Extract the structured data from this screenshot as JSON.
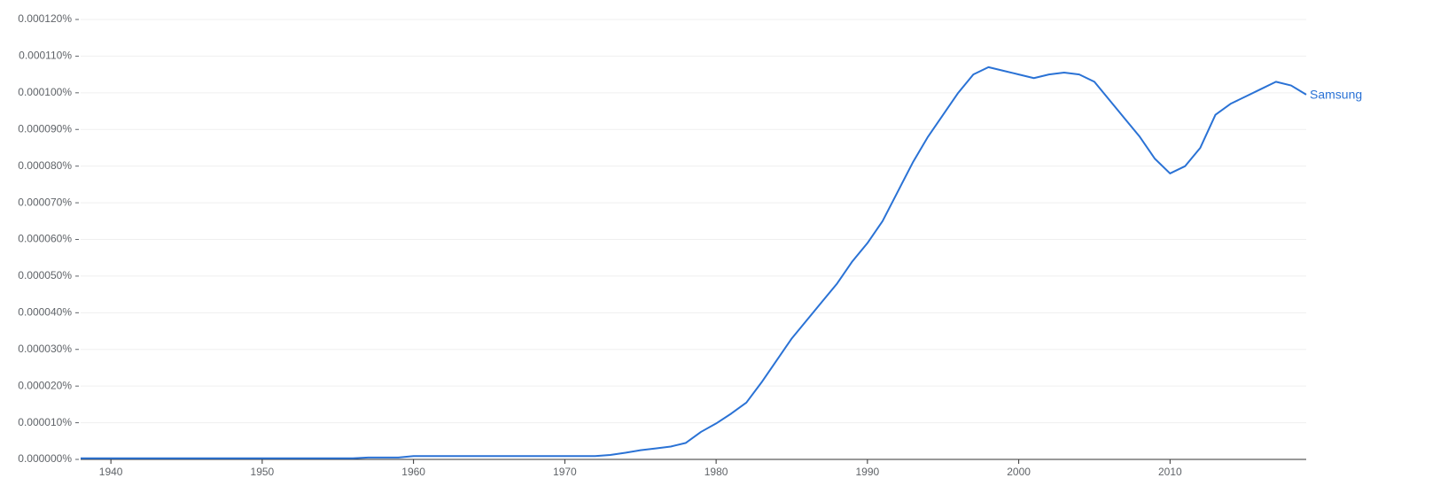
{
  "chart_data": {
    "type": "line",
    "x": [
      1938,
      1939,
      1940,
      1941,
      1942,
      1943,
      1944,
      1945,
      1946,
      1947,
      1948,
      1949,
      1950,
      1951,
      1952,
      1953,
      1954,
      1955,
      1956,
      1957,
      1958,
      1959,
      1960,
      1961,
      1962,
      1963,
      1964,
      1965,
      1966,
      1967,
      1968,
      1969,
      1970,
      1971,
      1972,
      1973,
      1974,
      1975,
      1976,
      1977,
      1978,
      1979,
      1980,
      1981,
      1982,
      1983,
      1984,
      1985,
      1986,
      1987,
      1988,
      1989,
      1990,
      1991,
      1992,
      1993,
      1994,
      1995,
      1996,
      1997,
      1998,
      1999,
      2000,
      2001,
      2002,
      2003,
      2004,
      2005,
      2006,
      2007,
      2008,
      2009,
      2010,
      2011,
      2012,
      2013,
      2014,
      2015,
      2016,
      2017,
      2018,
      2019
    ],
    "series": [
      {
        "name": "Samsung",
        "color": "#2a72d5",
        "values": [
          3e-07,
          3e-07,
          3e-07,
          3e-07,
          3e-07,
          3e-07,
          3e-07,
          3e-07,
          3e-07,
          3e-07,
          3e-07,
          3e-07,
          3e-07,
          3e-07,
          3e-07,
          3e-07,
          3e-07,
          3e-07,
          3e-07,
          5e-07,
          5e-07,
          5e-07,
          9e-07,
          9e-07,
          9e-07,
          9e-07,
          9e-07,
          9e-07,
          9e-07,
          9e-07,
          9e-07,
          9e-07,
          9e-07,
          9e-07,
          9e-07,
          1.2e-06,
          1.8e-06,
          2.5e-06,
          3e-06,
          3.5e-06,
          4.5e-06,
          7.5e-06,
          9.8e-06,
          1.25e-05,
          1.55e-05,
          2.1e-05,
          2.7e-05,
          3.3e-05,
          3.8e-05,
          4.3e-05,
          4.8e-05,
          5.4e-05,
          5.9e-05,
          6.5e-05,
          7.3e-05,
          8.1e-05,
          8.8e-05,
          9.4e-05,
          0.0001,
          0.000105,
          0.000107,
          0.000106,
          0.000105,
          0.000104,
          0.000105,
          0.0001055,
          0.000105,
          0.000103,
          9.8e-05,
          9.3e-05,
          8.8e-05,
          8.2e-05,
          7.8e-05,
          8e-05,
          8.5e-05,
          9.4e-05,
          9.7e-05,
          9.9e-05,
          0.000101,
          0.000103,
          0.000102,
          9.95e-05
        ]
      }
    ],
    "xlim": [
      1938,
      2019
    ],
    "xticks": [
      1940,
      1950,
      1960,
      1970,
      1980,
      1990,
      2000,
      2010
    ],
    "ylim": [
      0,
      0.00012
    ],
    "yticks": [
      {
        "value": 0,
        "label": "0.000000%"
      },
      {
        "value": 1e-05,
        "label": "0.000010%"
      },
      {
        "value": 2e-05,
        "label": "0.000020%"
      },
      {
        "value": 3e-05,
        "label": "0.000030%"
      },
      {
        "value": 4e-05,
        "label": "0.000040%"
      },
      {
        "value": 5e-05,
        "label": "0.000050%"
      },
      {
        "value": 6e-05,
        "label": "0.000060%"
      },
      {
        "value": 7e-05,
        "label": "0.000070%"
      },
      {
        "value": 8e-05,
        "label": "0.000080%"
      },
      {
        "value": 9e-05,
        "label": "0.000090%"
      },
      {
        "value": 0.0001,
        "label": "0.000100%"
      },
      {
        "value": 0.00011,
        "label": "0.000110%"
      },
      {
        "value": 0.00012,
        "label": "0.000120%"
      }
    ],
    "grid": true
  }
}
